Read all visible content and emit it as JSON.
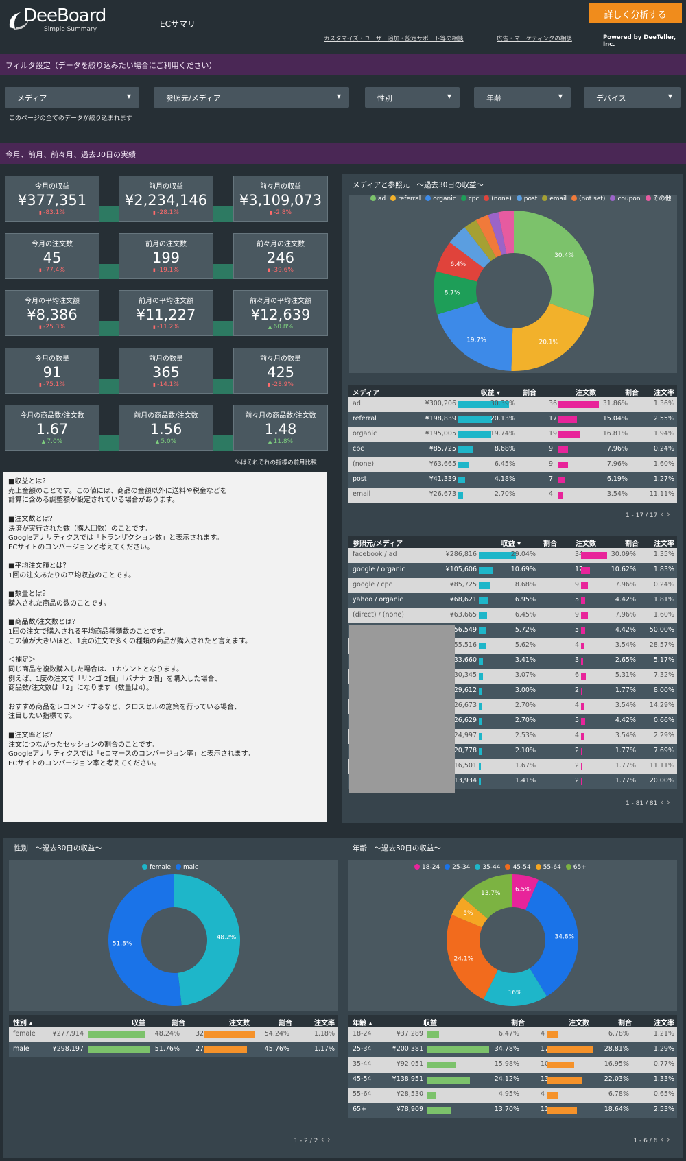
{
  "header": {
    "logo": "DeeBoard",
    "logo_sub": "Simple Summary",
    "page": "ECサマリ",
    "cta": "詳しく分析する",
    "links": [
      "カスタマイズ・ユーザー追加・設定サポート等の相談",
      "広告・マーケティングの相談",
      "Powered by DeeTeller, Inc."
    ]
  },
  "filter": {
    "title": "フィルタ設定（データを絞り込みたい場合にご利用ください）",
    "note": "このページの全てのデータが絞り込まれます",
    "dropdowns": [
      "メディア",
      "参照元/メディア",
      "性別",
      "年齢",
      "デバイス"
    ]
  },
  "perf_title": "今月、前月、前々月、過去30日の実績",
  "kpis": [
    [
      {
        "t": "今月の収益",
        "v": "¥377,351",
        "d": "-83.1%",
        "s": "neg"
      },
      {
        "t": "前月の収益",
        "v": "¥2,234,146",
        "d": "-28.1%",
        "s": "neg"
      },
      {
        "t": "前々月の収益",
        "v": "¥3,109,073",
        "d": "-2.8%",
        "s": "neg"
      }
    ],
    [
      {
        "t": "今月の注文数",
        "v": "45",
        "d": "-77.4%",
        "s": "neg"
      },
      {
        "t": "前月の注文数",
        "v": "199",
        "d": "-19.1%",
        "s": "neg"
      },
      {
        "t": "前々月の注文数",
        "v": "246",
        "d": "-39.6%",
        "s": "neg"
      }
    ],
    [
      {
        "t": "今月の平均注文額",
        "v": "¥8,386",
        "d": "-25.3%",
        "s": "neg"
      },
      {
        "t": "前月の平均注文額",
        "v": "¥11,227",
        "d": "-11.2%",
        "s": "neg"
      },
      {
        "t": "前々月の平均注文額",
        "v": "¥12,639",
        "d": "60.8%",
        "s": "pos"
      }
    ],
    [
      {
        "t": "今月の数量",
        "v": "91",
        "d": "-75.1%",
        "s": "neg"
      },
      {
        "t": "前月の数量",
        "v": "365",
        "d": "-14.1%",
        "s": "neg"
      },
      {
        "t": "前々月の数量",
        "v": "425",
        "d": "-28.9%",
        "s": "neg"
      }
    ],
    [
      {
        "t": "今月の商品数/注文数",
        "v": "1.67",
        "d": "7.0%",
        "s": "pos"
      },
      {
        "t": "前月の商品数/注文数",
        "v": "1.56",
        "d": "5.0%",
        "s": "pos"
      },
      {
        "t": "前々月の商品数/注文数",
        "v": "1.48",
        "d": "11.8%",
        "s": "pos"
      }
    ]
  ],
  "kpi_note": "%はそれぞれの指標の前月比較",
  "glossary": [
    "■収益とは？",
    "売上金額のことです。この値には、商品の金額以外に送料や税金などを",
    "計算に含める調整額が設定されている場合があります。",
    "",
    "■注文数とは？",
    "決済が実行された数（購入回数）のことです。",
    "Googleアナリティクスでは「トランザクション数」と表示されます。",
    "ECサイトのコンバージョンと考えてください。",
    "",
    "■平均注文額とは？",
    "1回の注文あたりの平均収益のことです。",
    "",
    "■数量とは？",
    "購入された商品の数のことです。",
    "",
    "■商品数/注文数とは？",
    "1回の注文で購入される平均商品種類数のことです。",
    "この値が大きいほど、1度の注文で多くの種類の商品が購入されたと言えます。",
    "",
    "＜補足＞",
    "同じ商品を複数購入した場合は、1カウントとなります。",
    "例えば、1度の注文で「リンゴ 2個」「バナナ 2個」を購入した場合、",
    "商品数/注文数は「2」になります（数量は4）。",
    "",
    "おすすめ商品をレコメンドするなど、クロスセルの施策を行っている場合、",
    "注目したい指標です。",
    "",
    "■注文率とは？",
    "注文につながったセッションの割合のことです。",
    "Googleアナリティクスでは「eコマースのコンバージョン率」と表示されます。",
    "ECサイトのコンバージョン率と考えてください。"
  ],
  "media_chart": {
    "title": "メディアと参照元　〜過去30日の収益〜",
    "legend": [
      {
        "n": "ad",
        "c": "#7cc26b"
      },
      {
        "n": "referral",
        "c": "#f2b12b"
      },
      {
        "n": "organic",
        "c": "#3d8ae8"
      },
      {
        "n": "cpc",
        "c": "#1e9e58"
      },
      {
        "n": "(none)",
        "c": "#e0433b"
      },
      {
        "n": "post",
        "c": "#5b9ee0"
      },
      {
        "n": "email",
        "c": "#a5a033"
      },
      {
        "n": "(not set)",
        "c": "#f07a3a"
      },
      {
        "n": "coupon",
        "c": "#9b64c8"
      },
      {
        "n": "その他",
        "c": "#e65ba0"
      }
    ],
    "values": [
      30.4,
      20.1,
      19.7,
      8.7,
      6.4,
      4.2,
      2.7,
      2.6,
      2.1,
      3.1
    ],
    "labels": [
      "30.4%",
      "20.1%",
      "19.7%",
      "8.7%",
      "6.4%",
      "",
      "",
      "",
      "",
      ""
    ]
  },
  "media_table": {
    "headers": [
      "メディア",
      "収益 ▾",
      "割合",
      "注文数",
      "割合",
      "注文率"
    ],
    "rows": [
      [
        "ad",
        "¥300,206",
        "30.39%",
        "36",
        "31.86%",
        "1.36%",
        1.0,
        1.0
      ],
      [
        "referral",
        "¥198,839",
        "20.13%",
        "17",
        "15.04%",
        "2.55%",
        0.66,
        0.47
      ],
      [
        "organic",
        "¥195,005",
        "19.74%",
        "19",
        "16.81%",
        "1.94%",
        0.65,
        0.53
      ],
      [
        "cpc",
        "¥85,725",
        "8.68%",
        "9",
        "7.96%",
        "0.24%",
        0.29,
        0.25
      ],
      [
        "(none)",
        "¥63,665",
        "6.45%",
        "9",
        "7.96%",
        "1.60%",
        0.21,
        0.25
      ],
      [
        "post",
        "¥41,339",
        "4.18%",
        "7",
        "6.19%",
        "1.27%",
        0.14,
        0.19
      ],
      [
        "email",
        "¥26,673",
        "2.70%",
        "4",
        "3.54%",
        "11.11%",
        0.09,
        0.11
      ]
    ],
    "pager": "1 - 17 / 17"
  },
  "source_table": {
    "headers": [
      "参照元/メディア",
      "収益 ▾",
      "割合",
      "注文数",
      "割合",
      "注文率"
    ],
    "rows": [
      [
        "facebook / ad",
        "¥286,816",
        "29.04%",
        "34",
        "30.09%",
        "1.35%",
        1.0,
        1.0
      ],
      [
        "google / organic",
        "¥105,606",
        "10.69%",
        "12",
        "10.62%",
        "1.83%",
        0.37,
        0.35
      ],
      [
        "google / cpc",
        "¥85,725",
        "8.68%",
        "9",
        "7.96%",
        "0.24%",
        0.3,
        0.26
      ],
      [
        "yahoo / organic",
        "¥68,621",
        "6.95%",
        "5",
        "4.42%",
        "1.81%",
        0.24,
        0.15
      ],
      [
        "(direct) / (none)",
        "¥63,665",
        "6.45%",
        "9",
        "7.96%",
        "1.60%",
        0.22,
        0.26
      ],
      [
        "",
        "¥56,549",
        "5.72%",
        "5",
        "4.42%",
        "50.00%",
        0.2,
        0.15
      ],
      [
        "",
        "¥55,516",
        "5.62%",
        "4",
        "3.54%",
        "28.57%",
        0.19,
        0.12
      ],
      [
        "",
        "¥33,660",
        "3.41%",
        "3",
        "2.65%",
        "5.17%",
        0.12,
        0.09
      ],
      [
        "",
        "¥30,345",
        "3.07%",
        "6",
        "5.31%",
        "7.32%",
        0.11,
        0.18
      ],
      [
        "",
        "¥29,612",
        "3.00%",
        "2",
        "1.77%",
        "8.00%",
        0.1,
        0.06
      ],
      [
        "",
        "¥26,673",
        "2.70%",
        "4",
        "3.54%",
        "14.29%",
        0.09,
        0.12
      ],
      [
        "",
        "¥26,629",
        "2.70%",
        "5",
        "4.42%",
        "0.66%",
        0.09,
        0.15
      ],
      [
        "",
        "¥24,997",
        "2.53%",
        "4",
        "3.54%",
        "2.29%",
        0.09,
        0.12
      ],
      [
        "",
        "¥20,778",
        "2.10%",
        "2",
        "1.77%",
        "7.69%",
        0.07,
        0.06
      ],
      [
        "",
        "¥16,501",
        "1.67%",
        "2",
        "1.77%",
        "11.11%",
        0.06,
        0.06
      ],
      [
        "",
        "¥13,934",
        "1.41%",
        "2",
        "1.77%",
        "20.00%",
        0.05,
        0.06
      ]
    ],
    "pager": "1 - 81 / 81"
  },
  "gender_chart": {
    "title": "性別　〜過去30日の収益〜",
    "legend": [
      {
        "n": "female",
        "c": "#1eb6c9"
      },
      {
        "n": "male",
        "c": "#1a73e8"
      }
    ],
    "values": [
      48.2,
      51.8
    ],
    "labels": [
      "48.2%",
      "51.8%"
    ]
  },
  "gender_table": {
    "headers": [
      "性別 ▴",
      "収益",
      "割合",
      "注文数",
      "割合",
      "注文率"
    ],
    "rows": [
      [
        "female",
        "¥277,914",
        "48.24%",
        "32",
        "54.24%",
        "1.18%",
        0.93,
        1.0
      ],
      [
        "male",
        "¥298,197",
        "51.76%",
        "27",
        "45.76%",
        "1.17%",
        1.0,
        0.84
      ]
    ],
    "pager": "1 - 2 / 2"
  },
  "age_chart": {
    "title": "年齢　〜過去30日の収益〜",
    "legend": [
      {
        "n": "18-24",
        "c": "#e8249a"
      },
      {
        "n": "25-34",
        "c": "#1a73e8"
      },
      {
        "n": "35-44",
        "c": "#1eb6c9"
      },
      {
        "n": "45-54",
        "c": "#f26b1d"
      },
      {
        "n": "55-64",
        "c": "#f5a623"
      },
      {
        "n": "65+",
        "c": "#7cb342"
      }
    ],
    "values": [
      6.5,
      34.8,
      16,
      24.1,
      5,
      13.7
    ],
    "labels": [
      "6.5%",
      "34.8%",
      "16%",
      "24.1%",
      "5%",
      "13.7%"
    ]
  },
  "age_table": {
    "headers": [
      "年齢 ▴",
      "収益",
      "割合",
      "注文数",
      "割合",
      "注文率"
    ],
    "rows": [
      [
        "18-24",
        "¥37,289",
        "6.47%",
        "4",
        "6.78%",
        "1.21%",
        0.19,
        0.24
      ],
      [
        "25-34",
        "¥200,381",
        "34.78%",
        "17",
        "28.81%",
        "1.29%",
        1.0,
        1.0
      ],
      [
        "35-44",
        "¥92,051",
        "15.98%",
        "10",
        "16.95%",
        "0.77%",
        0.46,
        0.59
      ],
      [
        "45-54",
        "¥138,951",
        "24.12%",
        "13",
        "22.03%",
        "1.33%",
        0.69,
        0.76
      ],
      [
        "55-64",
        "¥28,530",
        "4.95%",
        "4",
        "6.78%",
        "0.65%",
        0.14,
        0.24
      ],
      [
        "65+",
        "¥78,909",
        "13.70%",
        "11",
        "18.64%",
        "2.53%",
        0.39,
        0.65
      ]
    ],
    "pager": "1 - 6 / 6"
  }
}
